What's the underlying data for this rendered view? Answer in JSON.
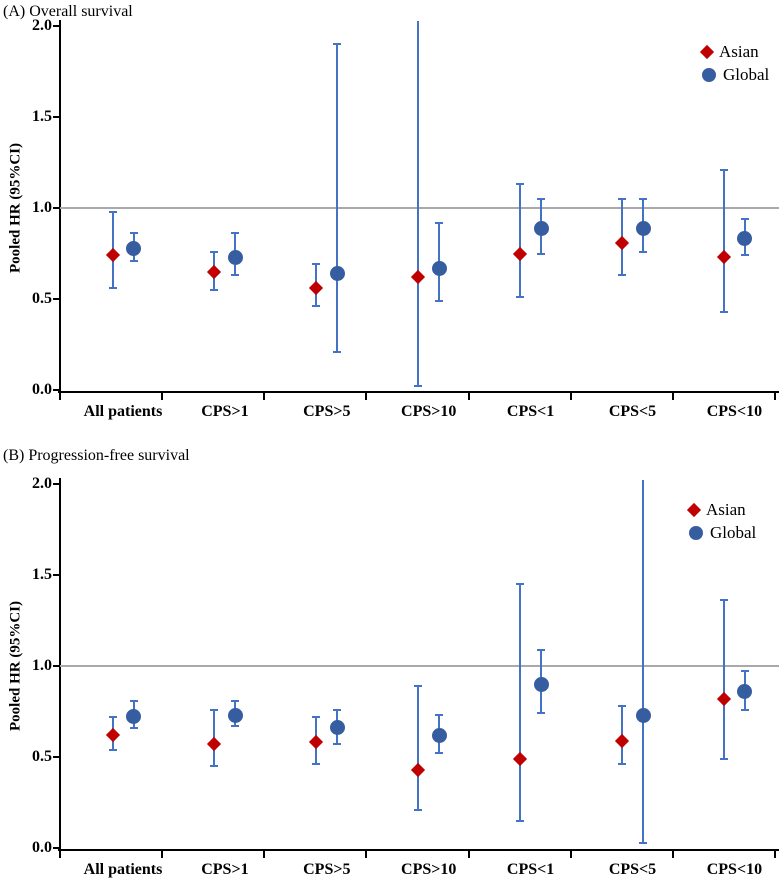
{
  "figure": {
    "background_color": "#ffffff",
    "text_color": "#000000",
    "reference_line_color": "#a9a9a9",
    "errorbar_color": "#4472c4"
  },
  "chart_data": [
    {
      "type": "scatter",
      "title": "(A) Overall survival",
      "ylabel": "Pooled HR (95%CI)",
      "xlabel": "",
      "ylim": [
        0.0,
        2.0
      ],
      "yticks": [
        0.0,
        0.5,
        1.0,
        1.5,
        2.0
      ],
      "reference_line": 1.0,
      "grid": "off",
      "legend_position": "top-right",
      "categories": [
        "All patients",
        "CPS>1",
        "CPS>5",
        "CPS>10",
        "CPS<1",
        "CPS<5",
        "CPS<10"
      ],
      "series": [
        {
          "name": "Asian",
          "marker": "diamond",
          "color": "#c00000",
          "errorbar_color": "#4472c4",
          "points": [
            {
              "hr": 0.74,
              "lo": 0.56,
              "hi": 0.98
            },
            {
              "hr": 0.65,
              "lo": 0.55,
              "hi": 0.76
            },
            {
              "hr": 0.56,
              "lo": 0.46,
              "hi": 0.69
            },
            {
              "hr": 0.62,
              "lo": 0.02,
              "hi": 2.03,
              "hi_clipped": true,
              "note": "upper CI exceeds axis maximum 2.0 (whisker clipped)"
            },
            {
              "hr": 0.75,
              "lo": 0.51,
              "hi": 1.13
            },
            {
              "hr": 0.81,
              "lo": 0.63,
              "hi": 1.05
            },
            {
              "hr": 0.73,
              "lo": 0.43,
              "hi": 1.21
            }
          ]
        },
        {
          "name": "Global",
          "marker": "circle",
          "color": "#375da1",
          "errorbar_color": "#4472c4",
          "points": [
            {
              "hr": 0.78,
              "lo": 0.71,
              "hi": 0.86
            },
            {
              "hr": 0.73,
              "lo": 0.63,
              "hi": 0.86
            },
            {
              "hr": 0.64,
              "lo": 0.21,
              "hi": 1.9
            },
            {
              "hr": 0.67,
              "lo": 0.49,
              "hi": 0.92
            },
            {
              "hr": 0.89,
              "lo": 0.75,
              "hi": 1.05
            },
            {
              "hr": 0.89,
              "lo": 0.76,
              "hi": 1.05
            },
            {
              "hr": 0.83,
              "lo": 0.74,
              "hi": 0.94
            }
          ]
        }
      ]
    },
    {
      "type": "scatter",
      "title": "(B) Progression-free survival",
      "ylabel": "Pooled HR (95%CI)",
      "xlabel": "",
      "ylim": [
        0.0,
        2.0
      ],
      "yticks": [
        0.0,
        0.5,
        1.0,
        1.5,
        2.0
      ],
      "reference_line": 1.0,
      "grid": "off",
      "legend_position": "top-right",
      "categories": [
        "All patients",
        "CPS>1",
        "CPS>5",
        "CPS>10",
        "CPS<1",
        "CPS<5",
        "CPS<10"
      ],
      "series": [
        {
          "name": "Asian",
          "marker": "diamond",
          "color": "#c00000",
          "errorbar_color": "#4472c4",
          "points": [
            {
              "hr": 0.62,
              "lo": 0.54,
              "hi": 0.72
            },
            {
              "hr": 0.57,
              "lo": 0.45,
              "hi": 0.76
            },
            {
              "hr": 0.58,
              "lo": 0.46,
              "hi": 0.72
            },
            {
              "hr": 0.43,
              "lo": 0.21,
              "hi": 0.89
            },
            {
              "hr": 0.49,
              "lo": 0.15,
              "hi": 1.45
            },
            {
              "hr": 0.59,
              "lo": 0.46,
              "hi": 0.78
            },
            {
              "hr": 0.82,
              "lo": 0.49,
              "hi": 1.36
            }
          ]
        },
        {
          "name": "Global",
          "marker": "circle",
          "color": "#375da1",
          "errorbar_color": "#4472c4",
          "points": [
            {
              "hr": 0.72,
              "lo": 0.66,
              "hi": 0.81
            },
            {
              "hr": 0.73,
              "lo": 0.67,
              "hi": 0.81
            },
            {
              "hr": 0.66,
              "lo": 0.57,
              "hi": 0.76
            },
            {
              "hr": 0.62,
              "lo": 0.52,
              "hi": 0.73
            },
            {
              "hr": 0.9,
              "lo": 0.74,
              "hi": 1.09
            },
            {
              "hr": 0.73,
              "lo": 0.03,
              "hi": 2.02,
              "hi_clipped": true,
              "note": "upper CI exceeds axis maximum 2.0 (whisker clipped)"
            },
            {
              "hr": 0.86,
              "lo": 0.76,
              "hi": 0.97
            }
          ]
        }
      ]
    }
  ]
}
